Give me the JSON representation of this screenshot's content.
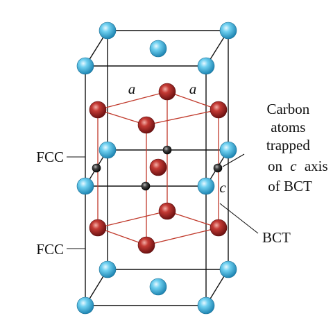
{
  "labels": {
    "a_left": "a",
    "a_right": "a",
    "c": "c",
    "fcc_top": "FCC",
    "fcc_bottom": "FCC",
    "bct": "BCT",
    "carbon_lines": [
      "Carbon",
      "atoms",
      "trapped",
      "on",
      "c",
      "axis",
      "of BCT"
    ]
  },
  "colors": {
    "iron_blue": "#3fb3dc",
    "iron_red": "#b52a2a",
    "carbon": "#2b2b2b",
    "edge": "#111111",
    "bct_edge": "#c0392b"
  }
}
